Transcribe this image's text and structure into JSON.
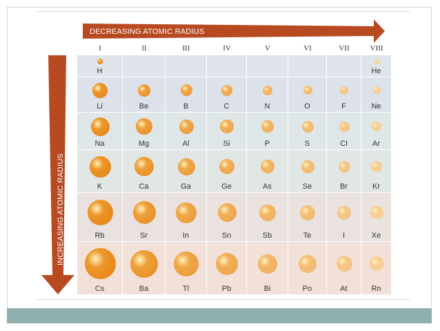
{
  "titles": {
    "horizontal_label": "DECREASING ATOMIC RADIUS",
    "vertical_label": "INCREASING ATOMIC RADIUS"
  },
  "groups": [
    "I",
    "II",
    "III",
    "IV",
    "V",
    "VI",
    "VII",
    "VIII"
  ],
  "rows": [
    {
      "elements": [
        "H",
        "",
        "",
        "",
        "",
        "",
        "",
        "He"
      ]
    },
    {
      "elements": [
        "Li",
        "Be",
        "B",
        "C",
        "N",
        "O",
        "F",
        "Ne"
      ]
    },
    {
      "elements": [
        "Na",
        "Mg",
        "Al",
        "Si",
        "P",
        "S",
        "Cl",
        "Ar"
      ]
    },
    {
      "elements": [
        "K",
        "Ca",
        "Ga",
        "Ge",
        "As",
        "Se",
        "Br",
        "Kr"
      ]
    },
    {
      "elements": [
        "Rb",
        "Sr",
        "In",
        "Sn",
        "Sb",
        "Te",
        "I",
        "Xe"
      ]
    },
    {
      "elements": [
        "Cs",
        "Ba",
        "Tl",
        "Pb",
        "Bi",
        "Po",
        "At",
        "Rn"
      ]
    }
  ],
  "colors": {
    "arrow": "#b84a22",
    "row_bg": [
      "#dfe3ea",
      "#dde1ea",
      "#dfe6e8",
      "#e0e7e5",
      "#e9e2df",
      "#f2e1d8"
    ],
    "atom_dark": "#e8891c",
    "atom_light": "#f6cf9c"
  }
}
